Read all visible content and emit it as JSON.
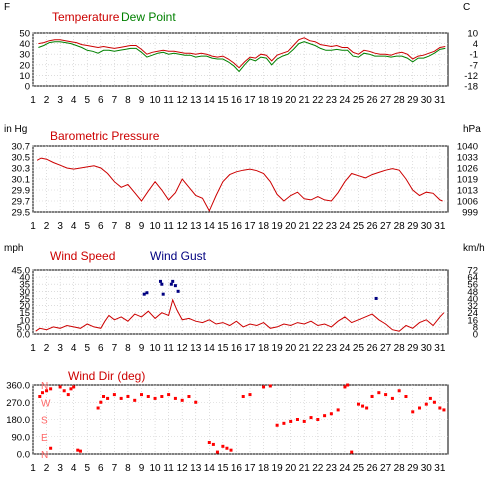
{
  "chart_data": [
    {
      "type": "line",
      "legend": [
        "Temperature",
        "Dew Point"
      ],
      "left_unit": "F",
      "right_unit": "C",
      "y_ticks_left": [
        "50",
        "40",
        "30",
        "20",
        "10",
        "0"
      ],
      "y_ticks_right": [
        "10",
        "4",
        "-1",
        "-7",
        "-12",
        "-18"
      ],
      "ylim": [
        0,
        55
      ],
      "x_ticks": [
        "1",
        "2",
        "3",
        "4",
        "5",
        "6",
        "7",
        "8",
        "9",
        "10",
        "11",
        "12",
        "13",
        "14",
        "15",
        "16",
        "17",
        "18",
        "19",
        "20",
        "21",
        "22",
        "23",
        "24",
        "25",
        "26",
        "27",
        "28",
        "29",
        "30",
        "31"
      ],
      "xlim": [
        1,
        31.6
      ],
      "colors": {
        "temperature": "#cc0000",
        "dew_point": "#008000"
      },
      "series": [
        {
          "name": "Temperature",
          "x": [
            1.4,
            1.8,
            2.2,
            2.6,
            3,
            3.4,
            3.8,
            4.2,
            4.6,
            5,
            5.4,
            5.8,
            6.2,
            6.6,
            7,
            7.4,
            7.8,
            8.2,
            8.6,
            9,
            9.4,
            9.8,
            10.2,
            10.6,
            11,
            11.4,
            11.8,
            12.2,
            12.6,
            13,
            13.4,
            13.8,
            14.2,
            14.6,
            15,
            15.4,
            15.8,
            16.2,
            16.6,
            17,
            17.4,
            17.8,
            18.2,
            18.6,
            19,
            19.4,
            19.8,
            20.2,
            20.6,
            21,
            21.4,
            21.8,
            22.2,
            22.6,
            23,
            23.4,
            23.8,
            24.2,
            24.6,
            25,
            25.4,
            25.8,
            26.2,
            26.6,
            27,
            27.4,
            27.8,
            28.2,
            28.6,
            29,
            29.4,
            29.8,
            30.2,
            30.6,
            31,
            31.4
          ],
          "y": [
            44,
            45,
            47,
            48,
            48,
            47,
            46,
            45,
            43,
            42,
            41,
            40,
            41,
            40,
            39,
            40,
            41,
            42,
            42,
            38,
            33,
            35,
            36,
            37,
            36,
            36,
            35,
            34,
            34,
            33,
            34,
            33,
            31,
            30,
            31,
            28,
            24,
            19,
            25,
            30,
            29,
            33,
            32,
            26,
            32,
            34,
            36,
            42,
            48,
            50,
            47,
            46,
            43,
            42,
            41,
            42,
            40,
            40,
            35,
            33,
            37,
            36,
            34,
            33,
            33,
            32,
            34,
            35,
            33,
            28,
            31,
            32,
            34,
            36,
            40,
            41
          ]
        },
        {
          "name": "Dew Point",
          "x": [
            1.4,
            1.8,
            2.2,
            2.6,
            3,
            3.4,
            3.8,
            4.2,
            4.6,
            5,
            5.4,
            5.8,
            6.2,
            6.6,
            7,
            7.4,
            7.8,
            8.2,
            8.6,
            9,
            9.4,
            9.8,
            10.2,
            10.6,
            11,
            11.4,
            11.8,
            12.2,
            12.6,
            13,
            13.4,
            13.8,
            14.2,
            14.6,
            15,
            15.4,
            15.8,
            16.2,
            16.6,
            17,
            17.4,
            17.8,
            18.2,
            18.6,
            19,
            19.4,
            19.8,
            20.2,
            20.6,
            21,
            21.4,
            21.8,
            22.2,
            22.6,
            23,
            23.4,
            23.8,
            24.2,
            24.6,
            25,
            25.4,
            25.8,
            26.2,
            26.6,
            27,
            27.4,
            27.8,
            28.2,
            28.6,
            29,
            29.4,
            29.8,
            30.2,
            30.6,
            31,
            31.4
          ],
          "y": [
            40,
            42,
            45,
            46,
            46,
            45,
            44,
            42,
            40,
            37,
            36,
            34,
            37,
            37,
            36,
            37,
            38,
            39,
            39,
            35,
            30,
            32,
            34,
            35,
            33,
            34,
            33,
            32,
            32,
            30,
            31,
            31,
            29,
            28,
            28,
            25,
            21,
            15,
            22,
            28,
            26,
            30,
            29,
            22,
            28,
            31,
            33,
            38,
            44,
            46,
            44,
            42,
            39,
            37,
            37,
            38,
            37,
            37,
            31,
            30,
            34,
            33,
            31,
            31,
            31,
            30,
            31,
            31,
            29,
            25,
            29,
            29,
            31,
            34,
            38,
            39
          ]
        }
      ]
    },
    {
      "type": "line",
      "title": "Barometric Pressure",
      "left_unit": "in Hg",
      "right_unit": "hPa",
      "y_ticks_left": [
        "30.7",
        "30.5",
        "30.3",
        "30.1",
        "29.9",
        "29.7",
        "29.5"
      ],
      "y_ticks_right": [
        "1040",
        "1033",
        "1026",
        "1019",
        "1013",
        "1006",
        "999"
      ],
      "ylim": [
        29.5,
        30.7
      ],
      "xlim": [
        1,
        31.6
      ],
      "colors": {
        "pressure": "#cc0000"
      },
      "series": [
        {
          "name": "Barometric Pressure",
          "x": [
            1.3,
            1.6,
            2,
            2.5,
            3,
            3.5,
            4,
            4.5,
            5,
            5.5,
            6,
            6.5,
            7,
            7.5,
            8,
            8.5,
            9,
            9.5,
            10,
            10.5,
            11,
            11.5,
            12,
            12.5,
            13,
            13.5,
            14,
            14.5,
            15,
            15.5,
            16,
            16.5,
            17,
            17.5,
            18,
            18.5,
            19,
            19.5,
            20,
            20.5,
            21,
            21.5,
            22,
            22.5,
            23,
            23.5,
            24,
            24.5,
            25,
            25.5,
            26,
            26.5,
            27,
            27.5,
            28,
            28.5,
            29,
            29.5,
            30,
            30.5,
            31,
            31.2
          ],
          "y": [
            30.44,
            30.48,
            30.46,
            30.4,
            30.35,
            30.3,
            30.28,
            30.3,
            30.32,
            30.34,
            30.3,
            30.2,
            30.05,
            29.95,
            30.0,
            29.85,
            29.7,
            29.88,
            30.05,
            29.9,
            29.72,
            29.85,
            30.1,
            29.95,
            29.8,
            29.75,
            29.52,
            29.8,
            30.05,
            30.18,
            30.23,
            30.26,
            30.28,
            30.25,
            30.2,
            30.05,
            29.82,
            29.7,
            29.8,
            29.86,
            29.74,
            29.72,
            29.78,
            29.72,
            29.7,
            29.85,
            30.05,
            30.2,
            30.16,
            30.12,
            30.18,
            30.22,
            30.26,
            30.29,
            30.26,
            30.1,
            29.9,
            29.8,
            29.86,
            29.84,
            29.72,
            29.7
          ]
        }
      ]
    },
    {
      "type": "line",
      "legend": [
        "Wind Speed",
        "Wind Gust"
      ],
      "left_unit": "mph",
      "right_unit": "km/h",
      "y_ticks_left": [
        "45.0",
        "40",
        "35",
        "30",
        "25",
        "20",
        "15",
        "10",
        "5.0",
        "0.0"
      ],
      "y_ticks_right": [
        "72",
        "64",
        "56",
        "48",
        "40",
        "32",
        "24",
        "16",
        "8",
        "0"
      ],
      "ylim": [
        0,
        45
      ],
      "xlim": [
        1,
        31.6
      ],
      "colors": {
        "wind_speed": "#cc0000",
        "wind_gust": "#000080"
      },
      "series": [
        {
          "name": "Wind Speed",
          "x": [
            1.2,
            1.5,
            2,
            2.5,
            3,
            3.5,
            4,
            4.5,
            5,
            5.5,
            6,
            6.3,
            6.6,
            7,
            7.5,
            8,
            8.5,
            9,
            9.5,
            10,
            10.5,
            11,
            11.3,
            11.6,
            12,
            12.5,
            13,
            13.5,
            14,
            14.5,
            15,
            15.5,
            16,
            16.5,
            17,
            17.5,
            18,
            18.5,
            19,
            19.5,
            20,
            20.5,
            21,
            21.5,
            22,
            22.5,
            23,
            23.5,
            24,
            24.5,
            25,
            25.5,
            26,
            26.5,
            27,
            27.5,
            28,
            28.5,
            29,
            29.5,
            30,
            30.5,
            31,
            31.3
          ],
          "y": [
            2,
            4,
            3,
            5,
            4,
            6,
            5,
            4,
            7,
            5,
            4,
            9,
            13,
            10,
            12,
            9,
            14,
            12,
            16,
            11,
            15,
            13,
            24,
            17,
            10,
            11,
            9,
            8,
            10,
            7,
            8,
            6,
            9,
            5,
            7,
            6,
            8,
            4,
            5,
            7,
            6,
            8,
            7,
            9,
            6,
            7,
            5,
            9,
            12,
            8,
            10,
            12,
            14,
            10,
            7,
            3,
            2,
            6,
            4,
            8,
            10,
            6,
            12,
            15
          ]
        }
      ],
      "gusts": {
        "x": [
          9.2,
          9.4,
          10.4,
          10.5,
          10.6,
          11.2,
          11.3,
          11.5,
          11.7,
          26.3
        ],
        "y": [
          28,
          29,
          37,
          35,
          28,
          35,
          37,
          34,
          30,
          25
        ]
      }
    },
    {
      "type": "scatter",
      "title": "Wind Dir (deg)",
      "y_ticks_left": [
        "360.0",
        "270.0",
        "180.0",
        "90.0",
        "0.0"
      ],
      "compass_labels": [
        "N",
        "W",
        "S",
        "E",
        "N"
      ],
      "ylim": [
        0,
        360
      ],
      "xlim": [
        1,
        31.6
      ],
      "colors": {
        "points": "#ff0000",
        "compass": "#ff6666"
      },
      "series": [
        {
          "name": "Wind Dir (deg)",
          "x": [
            1.5,
            1.7,
            2,
            2.3,
            3,
            3.3,
            3.6,
            3.8,
            4,
            2.3,
            4.3,
            4.5,
            5.8,
            6,
            6.2,
            6.5,
            7,
            7.5,
            8,
            8.5,
            9,
            9.5,
            10,
            10.5,
            11,
            11.5,
            12,
            12.5,
            13,
            14,
            14.3,
            14.6,
            15,
            15.3,
            15.6,
            16.5,
            17,
            18,
            18.5,
            19,
            19.5,
            20,
            20.5,
            21,
            21.5,
            22,
            22.5,
            23,
            23.5,
            24,
            24.2,
            24.5,
            25,
            25.3,
            25.6,
            26,
            26.5,
            27,
            27.5,
            28,
            28.5,
            29,
            29.5,
            30,
            30.3,
            30.6,
            31,
            31.3
          ],
          "y": [
            300,
            320,
            330,
            340,
            350,
            330,
            310,
            340,
            350,
            30,
            20,
            15,
            240,
            270,
            300,
            290,
            310,
            290,
            300,
            280,
            310,
            300,
            290,
            300,
            310,
            290,
            280,
            300,
            270,
            60,
            50,
            10,
            40,
            30,
            20,
            300,
            310,
            350,
            355,
            150,
            160,
            170,
            180,
            170,
            190,
            180,
            200,
            210,
            230,
            350,
            360,
            10,
            260,
            250,
            240,
            300,
            320,
            310,
            290,
            330,
            300,
            220,
            240,
            260,
            290,
            270,
            240,
            230
          ]
        }
      ]
    }
  ]
}
